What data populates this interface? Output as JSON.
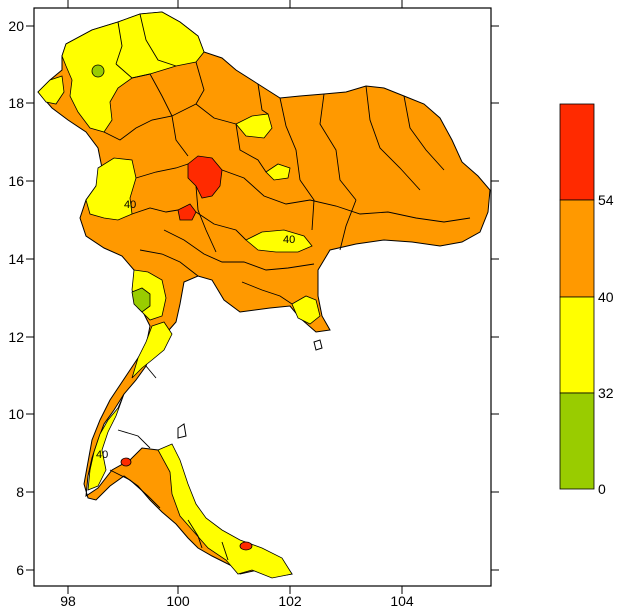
{
  "map": {
    "x_ticks": [
      "98",
      "100",
      "102",
      "104"
    ],
    "y_ticks": [
      "20",
      "18",
      "16",
      "14",
      "12",
      "10",
      "8",
      "6"
    ],
    "contour_labels": [
      "40",
      "40",
      "40"
    ]
  },
  "legend": {
    "labels": [
      "54",
      "40",
      "32",
      "0"
    ],
    "bins": [
      {
        "color": "#ff2a00"
      },
      {
        "color": "#ff9900"
      },
      {
        "color": "#ffff00"
      },
      {
        "color": "#99cc00"
      }
    ]
  }
}
